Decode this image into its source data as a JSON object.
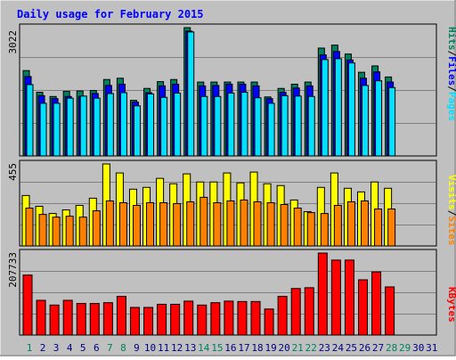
{
  "title": "Daily usage for February 2015",
  "colors": {
    "hits": "#00805c",
    "files": "#0000ff",
    "pages": "#00e0ff",
    "visits": "#ffff00",
    "sites": "#ff8000",
    "kbytes": "#ff0000",
    "weekend_label": "#00805c",
    "weekday_label": "#000080",
    "panel_bg": "#c0c0c0"
  },
  "chart_data": [
    {
      "type": "bar",
      "panel": "top",
      "axis_max_label": "3022",
      "ylim": [
        0,
        3022
      ],
      "right_labels": [
        "Pages",
        "Files",
        "Hits"
      ],
      "categories": [
        "1",
        "2",
        "3",
        "4",
        "5",
        "6",
        "7",
        "8",
        "9",
        "10",
        "11",
        "12",
        "13",
        "14",
        "15",
        "16",
        "17",
        "18",
        "19",
        "20",
        "21",
        "22",
        "23",
        "24",
        "25",
        "26",
        "27",
        "28",
        "29",
        "30",
        "31"
      ],
      "series": [
        {
          "name": "Hits",
          "values": [
            2010,
            1500,
            1400,
            1520,
            1530,
            1540,
            1800,
            1830,
            1310,
            1590,
            1750,
            1800,
            3022,
            1740,
            1740,
            1740,
            1740,
            1740,
            1390,
            1590,
            1690,
            1740,
            2540,
            2610,
            2400,
            1970,
            2120,
            1860,
            null,
            null,
            null
          ]
        },
        {
          "name": "Files",
          "values": [
            1870,
            1420,
            1350,
            1400,
            1400,
            1470,
            1660,
            1690,
            1270,
            1490,
            1650,
            1690,
            2940,
            1650,
            1660,
            1690,
            1690,
            1650,
            1350,
            1500,
            1600,
            1650,
            2380,
            2460,
            2260,
            1830,
            1980,
            1740,
            null,
            null,
            null
          ]
        },
        {
          "name": "Pages",
          "values": [
            1680,
            1240,
            1240,
            1360,
            1410,
            1360,
            1470,
            1490,
            1180,
            1460,
            1380,
            1480,
            2920,
            1400,
            1400,
            1480,
            1500,
            1370,
            1240,
            1420,
            1410,
            1400,
            2270,
            2290,
            2190,
            1660,
            1770,
            1610,
            null,
            null,
            null
          ]
        }
      ]
    },
    {
      "type": "bar",
      "panel": "middle",
      "axis_max_label": "455",
      "ylim": [
        0,
        455
      ],
      "right_labels": [
        "Sites",
        "Visits"
      ],
      "categories": [
        "1",
        "2",
        "3",
        "4",
        "5",
        "6",
        "7",
        "8",
        "9",
        "10",
        "11",
        "12",
        "13",
        "14",
        "15",
        "16",
        "17",
        "18",
        "19",
        "20",
        "21",
        "22",
        "23",
        "24",
        "25",
        "26",
        "27",
        "28",
        "29",
        "30",
        "31"
      ],
      "series": [
        {
          "name": "Visits",
          "values": [
            280,
            220,
            180,
            200,
            225,
            265,
            455,
            405,
            315,
            325,
            375,
            345,
            400,
            355,
            355,
            405,
            350,
            410,
            345,
            335,
            255,
            190,
            325,
            405,
            320,
            300,
            355,
            320,
            null,
            null,
            null
          ]
        },
        {
          "name": "Sites",
          "values": [
            210,
            175,
            160,
            165,
            160,
            195,
            250,
            240,
            225,
            240,
            240,
            235,
            245,
            270,
            240,
            250,
            255,
            245,
            240,
            230,
            210,
            185,
            180,
            225,
            245,
            250,
            205,
            205,
            null,
            null,
            null
          ]
        }
      ]
    },
    {
      "type": "bar",
      "panel": "bottom",
      "axis_max_label": "207733",
      "ylim": [
        0,
        207733
      ],
      "right_labels": [
        "KBytes"
      ],
      "categories": [
        "1",
        "2",
        "3",
        "4",
        "5",
        "6",
        "7",
        "8",
        "9",
        "10",
        "11",
        "12",
        "13",
        "14",
        "15",
        "16",
        "17",
        "18",
        "19",
        "20",
        "21",
        "22",
        "23",
        "24",
        "25",
        "26",
        "27",
        "28",
        "29",
        "30",
        "31"
      ],
      "series": [
        {
          "name": "KBytes",
          "values": [
            152000,
            88000,
            76000,
            88000,
            80000,
            80000,
            82000,
            98000,
            70000,
            70000,
            78000,
            78000,
            86000,
            76000,
            82000,
            86000,
            85000,
            85000,
            66000,
            98000,
            118000,
            120000,
            207733,
            190000,
            190000,
            140000,
            160000,
            122000,
            null,
            null,
            null
          ]
        }
      ]
    }
  ],
  "x_labels": [
    {
      "text": "1",
      "weekend": true
    },
    {
      "text": "2",
      "weekend": false
    },
    {
      "text": "3",
      "weekend": false
    },
    {
      "text": "4",
      "weekend": false
    },
    {
      "text": "5",
      "weekend": false
    },
    {
      "text": "6",
      "weekend": false
    },
    {
      "text": "7",
      "weekend": true
    },
    {
      "text": "8",
      "weekend": true
    },
    {
      "text": "9",
      "weekend": false
    },
    {
      "text": "10",
      "weekend": false
    },
    {
      "text": "11",
      "weekend": false
    },
    {
      "text": "12",
      "weekend": false
    },
    {
      "text": "13",
      "weekend": false
    },
    {
      "text": "14",
      "weekend": true
    },
    {
      "text": "15",
      "weekend": true
    },
    {
      "text": "16",
      "weekend": false
    },
    {
      "text": "17",
      "weekend": false
    },
    {
      "text": "18",
      "weekend": false
    },
    {
      "text": "19",
      "weekend": false
    },
    {
      "text": "20",
      "weekend": false
    },
    {
      "text": "21",
      "weekend": true
    },
    {
      "text": "22",
      "weekend": true
    },
    {
      "text": "23",
      "weekend": false
    },
    {
      "text": "24",
      "weekend": false
    },
    {
      "text": "25",
      "weekend": false
    },
    {
      "text": "26",
      "weekend": false
    },
    {
      "text": "27",
      "weekend": false
    },
    {
      "text": "28",
      "weekend": true
    },
    {
      "text": "29",
      "weekend": true
    },
    {
      "text": "30",
      "weekend": false
    },
    {
      "text": "31",
      "weekend": false
    }
  ]
}
